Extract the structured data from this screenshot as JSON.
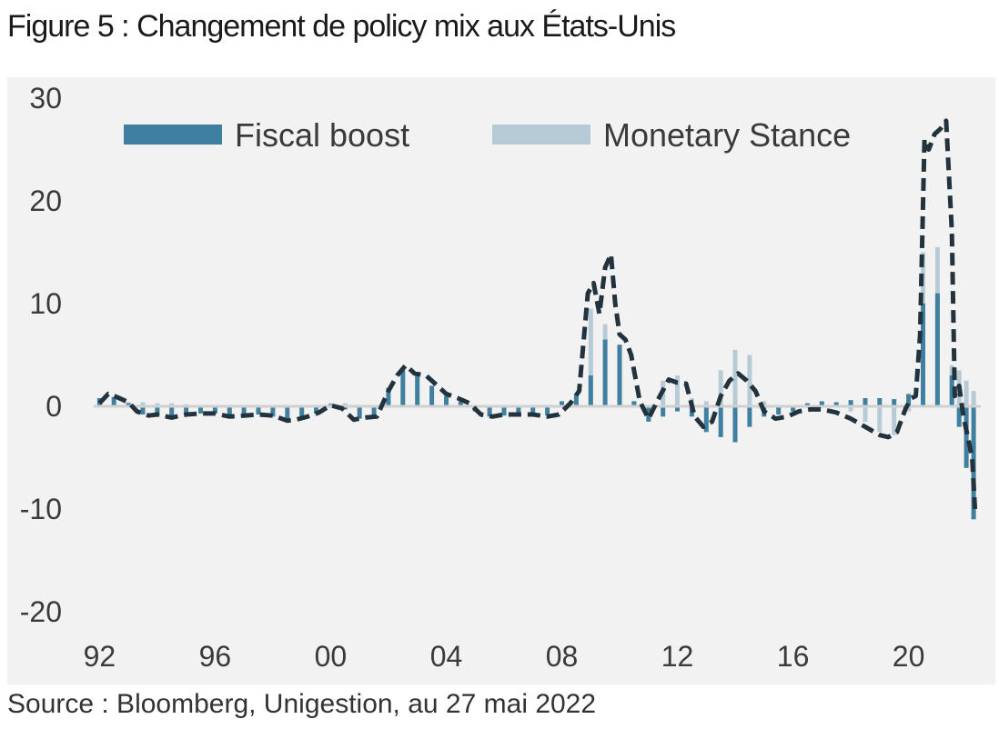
{
  "figure": {
    "title": "Figure 5 : Changement de policy mix aux États-Unis",
    "source": "Source : Bloomberg, Unigestion, au 27 mai 2022"
  },
  "chart_data": {
    "type": "bar",
    "title": "",
    "xlabel": "",
    "ylabel": "",
    "ylim": [
      -20,
      30
    ],
    "xlim": [
      1991.8,
      2022.5
    ],
    "grid": false,
    "legend_position": "top",
    "y_ticks": [
      30,
      20,
      10,
      0,
      -10,
      -20
    ],
    "y_tick_labels": [
      "30",
      "20",
      "10",
      "0",
      "-10",
      "-20"
    ],
    "x_ticks": [
      1992,
      1996,
      2000,
      2004,
      2008,
      2012,
      2016,
      2020
    ],
    "x_tick_labels": [
      "92",
      "96",
      "00",
      "04",
      "08",
      "12",
      "16",
      "20"
    ],
    "colors": {
      "fiscal": "#3f7f9f",
      "monetary": "#b6cbd5",
      "total_line": "#22333d",
      "background": "#f2f2f2",
      "zero_line": "#d0d0d0"
    },
    "series": [
      {
        "name": "Fiscal boost",
        "kind": "bar",
        "x": [
          1992.0,
          1992.5,
          1993.0,
          1993.5,
          1994.0,
          1994.5,
          1995.0,
          1995.5,
          1996.0,
          1996.5,
          1997.0,
          1997.5,
          1998.0,
          1998.5,
          1999.0,
          1999.5,
          2000.0,
          2000.5,
          2001.0,
          2001.5,
          2002.0,
          2002.5,
          2003.0,
          2003.5,
          2004.0,
          2004.5,
          2005.0,
          2005.5,
          2006.0,
          2006.5,
          2007.0,
          2007.5,
          2008.0,
          2008.5,
          2009.0,
          2009.5,
          2010.0,
          2010.5,
          2011.0,
          2011.5,
          2012.0,
          2012.5,
          2013.0,
          2013.5,
          2014.0,
          2014.5,
          2015.0,
          2015.5,
          2016.0,
          2016.5,
          2017.0,
          2017.5,
          2018.0,
          2018.5,
          2019.0,
          2019.5,
          2020.0,
          2020.5,
          2021.0,
          2021.5,
          2021.75,
          2022.0,
          2022.25
        ],
        "values": [
          0.8,
          0.9,
          0.3,
          -0.8,
          -1.0,
          -0.9,
          -0.8,
          -0.7,
          -0.7,
          -0.8,
          -0.9,
          -0.8,
          -1.0,
          -1.3,
          -1.1,
          -0.7,
          0.2,
          -0.3,
          -1.2,
          -1.0,
          1.8,
          3.5,
          3.2,
          2.0,
          1.0,
          0.5,
          -0.5,
          -1.0,
          -0.9,
          -0.8,
          -0.8,
          -0.9,
          0.5,
          1.2,
          3.0,
          6.5,
          6.0,
          0.5,
          -1.5,
          -1.0,
          -0.5,
          -1.0,
          -2.5,
          -3.0,
          -3.5,
          -2.0,
          -1.0,
          -0.8,
          -0.5,
          0.3,
          0.5,
          0.4,
          0.6,
          0.8,
          0.8,
          0.7,
          1.2,
          10.0,
          11.0,
          3.0,
          -2.0,
          -6.0,
          -11.0
        ]
      },
      {
        "name": "Monetary Stance",
        "kind": "bar",
        "x": [
          1992.0,
          1992.5,
          1993.0,
          1993.5,
          1994.0,
          1994.5,
          1995.0,
          1995.5,
          1996.0,
          1996.5,
          1997.0,
          1997.5,
          1998.0,
          1998.5,
          1999.0,
          1999.5,
          2000.0,
          2000.5,
          2001.0,
          2001.5,
          2002.0,
          2002.5,
          2003.0,
          2003.5,
          2004.0,
          2004.5,
          2005.0,
          2005.5,
          2006.0,
          2006.5,
          2007.0,
          2007.5,
          2008.0,
          2008.5,
          2009.0,
          2009.5,
          2010.0,
          2010.5,
          2011.0,
          2011.5,
          2012.0,
          2012.5,
          2013.0,
          2013.5,
          2014.0,
          2014.5,
          2015.0,
          2015.5,
          2016.0,
          2016.5,
          2017.0,
          2017.5,
          2018.0,
          2018.5,
          2019.0,
          2019.5,
          2020.0,
          2020.5,
          2021.0,
          2021.5,
          2021.75,
          2022.0,
          2022.25
        ],
        "values": [
          0.2,
          0.2,
          0.4,
          0.4,
          0.3,
          0.3,
          0.2,
          0.0,
          0.0,
          0.0,
          0.0,
          0.0,
          0.0,
          0.0,
          0.0,
          0.0,
          0.3,
          0.3,
          -0.3,
          0.0,
          0.5,
          0.5,
          0.3,
          0.2,
          0.2,
          0.0,
          0.0,
          0.0,
          0.0,
          0.0,
          0.0,
          0.0,
          0.5,
          1.0,
          9.5,
          8.0,
          1.0,
          0.5,
          0.0,
          2.5,
          3.0,
          0.8,
          0.5,
          3.5,
          5.5,
          5.0,
          0.5,
          0.0,
          0.0,
          0.0,
          0.3,
          0.3,
          -0.5,
          -1.5,
          -2.5,
          -2.8,
          -0.5,
          15.0,
          15.5,
          4.0,
          3.5,
          2.5,
          1.5
        ]
      },
      {
        "name": "",
        "kind": "line",
        "dashed": true,
        "x": [
          1992.0,
          1992.3,
          1992.6,
          1993.0,
          1993.3,
          1993.7,
          1994.0,
          1994.5,
          1995.0,
          1995.5,
          1996.0,
          1996.5,
          1997.0,
          1997.5,
          1998.0,
          1998.5,
          1998.8,
          1999.2,
          1999.6,
          2000.0,
          2000.4,
          2000.8,
          2001.2,
          2001.6,
          2002.0,
          2002.3,
          2002.6,
          2002.9,
          2003.3,
          2003.7,
          2004.0,
          2004.4,
          2004.8,
          2005.2,
          2005.6,
          2006.0,
          2006.5,
          2007.0,
          2007.5,
          2007.9,
          2008.3,
          2008.6,
          2008.9,
          2009.1,
          2009.3,
          2009.5,
          2009.7,
          2009.85,
          2010.0,
          2010.2,
          2010.4,
          2010.7,
          2011.0,
          2011.3,
          2011.7,
          2012.0,
          2012.3,
          2012.6,
          2012.9,
          2013.2,
          2013.5,
          2013.8,
          2014.1,
          2014.4,
          2014.7,
          2015.0,
          2015.4,
          2015.8,
          2016.2,
          2016.6,
          2017.0,
          2017.5,
          2018.0,
          2018.5,
          2019.0,
          2019.3,
          2019.6,
          2019.9,
          2020.1,
          2020.25,
          2020.4,
          2020.55,
          2020.7,
          2020.9,
          2021.1,
          2021.3,
          2021.5,
          2021.6,
          2021.75,
          2021.9,
          2022.05,
          2022.2,
          2022.3
        ],
        "values": [
          0.3,
          1.2,
          0.9,
          0.4,
          -0.5,
          -0.9,
          -0.8,
          -1.1,
          -0.8,
          -0.7,
          -0.7,
          -1.0,
          -0.9,
          -0.8,
          -0.9,
          -1.4,
          -1.3,
          -1.0,
          -0.6,
          0.1,
          -0.2,
          -1.3,
          -1.1,
          -1.0,
          1.5,
          3.0,
          4.0,
          3.2,
          3.0,
          2.0,
          1.2,
          0.8,
          0.3,
          -0.8,
          -1.0,
          -0.8,
          -0.8,
          -0.8,
          -1.0,
          -0.8,
          0.3,
          1.5,
          11.0,
          12.0,
          9.0,
          13.5,
          14.8,
          10.0,
          7.0,
          6.5,
          5.0,
          0.5,
          -1.2,
          0.5,
          2.6,
          2.3,
          2.2,
          -1.0,
          -2.0,
          -1.5,
          1.0,
          2.5,
          3.2,
          2.5,
          1.5,
          -0.5,
          -1.2,
          -1.0,
          -0.5,
          -0.3,
          -0.3,
          -0.6,
          -1.2,
          -2.0,
          -2.8,
          -3.0,
          -2.5,
          -0.2,
          0.8,
          1.0,
          7.0,
          26.0,
          25.0,
          26.5,
          27.0,
          27.8,
          17.0,
          1.0,
          2.0,
          -1.0,
          -3.0,
          -5.0,
          -10.0
        ]
      }
    ]
  }
}
